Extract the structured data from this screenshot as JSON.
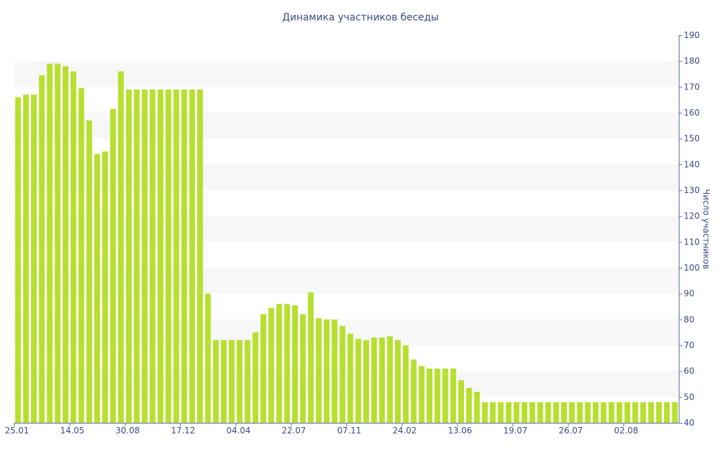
{
  "chart_data": {
    "type": "bar",
    "title": "Динамика участников беседы",
    "xlabel": "",
    "ylabel": "Число участников",
    "y_axis_side": "right",
    "ylim": [
      40,
      190
    ],
    "y_ticks": [
      40,
      50,
      60,
      70,
      80,
      90,
      100,
      110,
      120,
      130,
      140,
      150,
      160,
      170,
      180,
      190
    ],
    "grid": "alternating horizontal bands",
    "colors": {
      "bar": "#b7df2f",
      "band": "#f7f7f7",
      "axis": "#5a6ea8",
      "text": "#3b4a86"
    },
    "x_tick_labels": [
      {
        "index": 0,
        "label": "25.01"
      },
      {
        "index": 7,
        "label": "14.05"
      },
      {
        "index": 14,
        "label": "30.08"
      },
      {
        "index": 21,
        "label": "17.12"
      },
      {
        "index": 28,
        "label": "04.04"
      },
      {
        "index": 35,
        "label": "22.07"
      },
      {
        "index": 42,
        "label": "07.11"
      },
      {
        "index": 49,
        "label": "24.02"
      },
      {
        "index": 56,
        "label": "13.06"
      },
      {
        "index": 63,
        "label": "19.07"
      },
      {
        "index": 70,
        "label": "26.07"
      },
      {
        "index": 77,
        "label": "02.08"
      }
    ],
    "values": [
      166,
      167,
      167,
      174.5,
      179,
      179,
      178,
      176,
      169.5,
      157,
      144,
      145,
      161.5,
      176,
      169,
      169,
      169,
      169,
      169,
      169,
      169,
      169,
      169,
      169,
      90,
      72,
      72,
      72,
      72,
      72,
      75,
      82,
      84.5,
      86,
      86,
      85.5,
      82,
      90.5,
      80.5,
      80,
      80,
      77.5,
      74.5,
      72.5,
      72,
      73,
      73,
      73.5,
      72,
      70,
      64.5,
      62,
      61,
      61,
      61,
      61,
      56.5,
      53.5,
      52,
      48,
      48,
      48,
      48,
      48,
      48,
      48,
      48,
      48,
      48,
      48,
      48,
      48,
      48,
      48,
      48,
      48,
      48,
      48,
      48,
      48,
      48,
      48,
      48,
      48
    ]
  }
}
